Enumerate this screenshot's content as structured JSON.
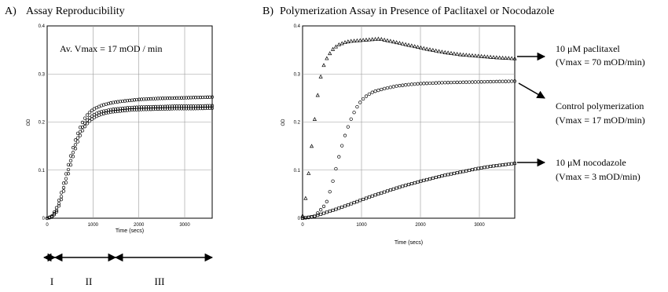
{
  "chart_data": [
    {
      "panel_label": "A)",
      "type": "scatter",
      "title": "Assay Reproducibility",
      "xlabel": "Time (secs)",
      "ylabel": "OD",
      "xlim": [
        0,
        3600
      ],
      "ylim": [
        0,
        0.4
      ],
      "x_ticks": [
        0,
        1000,
        2000,
        3000
      ],
      "x_tick_labels": [
        "0",
        "1000",
        "2000",
        "3000"
      ],
      "y_ticks": [
        0,
        0.1,
        0.2,
        0.3,
        0.4
      ],
      "y_tick_labels": [
        "0",
        "0.1",
        "0.2",
        "0.3",
        "0.4"
      ],
      "grid": true,
      "annotation": "Av. Vmax = 17 mOD / min",
      "series": [
        {
          "marker": "circle",
          "x": [
            0,
            100,
            200,
            300,
            400,
            500,
            600,
            700,
            800,
            900,
            1000,
            1100,
            1200,
            1400,
            1600,
            1800,
            2000,
            2400,
            2800,
            3200,
            3600
          ],
          "y": [
            0.0,
            0.004,
            0.02,
            0.05,
            0.088,
            0.125,
            0.158,
            0.185,
            0.205,
            0.218,
            0.226,
            0.231,
            0.235,
            0.24,
            0.243,
            0.245,
            0.247,
            0.249,
            0.25,
            0.251,
            0.252
          ]
        },
        {
          "marker": "circle",
          "x": [
            0,
            100,
            200,
            300,
            400,
            500,
            600,
            700,
            800,
            900,
            1000,
            1100,
            1200,
            1400,
            1600,
            1800,
            2000,
            2400,
            2800,
            3200,
            3600
          ],
          "y": [
            0.0,
            0.003,
            0.015,
            0.042,
            0.078,
            0.115,
            0.148,
            0.176,
            0.195,
            0.207,
            0.214,
            0.219,
            0.222,
            0.226,
            0.228,
            0.23,
            0.231,
            0.232,
            0.233,
            0.233,
            0.234
          ]
        },
        {
          "marker": "circle",
          "x": [
            0,
            100,
            200,
            300,
            400,
            500,
            600,
            700,
            800,
            900,
            1000,
            1100,
            1200,
            1400,
            1600,
            1800,
            2000,
            2400,
            2800,
            3200,
            3600
          ],
          "y": [
            0.0,
            0.002,
            0.012,
            0.036,
            0.07,
            0.106,
            0.14,
            0.168,
            0.188,
            0.2,
            0.208,
            0.213,
            0.217,
            0.221,
            0.223,
            0.225,
            0.226,
            0.227,
            0.228,
            0.228,
            0.229
          ]
        }
      ],
      "phases": [
        {
          "label": "I",
          "from": 0,
          "to": 80
        },
        {
          "label": "II",
          "from": 80,
          "to": 1500
        },
        {
          "label": "III",
          "from": 1500,
          "to": 3600
        }
      ]
    },
    {
      "panel_label": "B)",
      "type": "scatter",
      "title": "Polymerization Assay in Presence of Paclitaxel or Nocodazole",
      "xlabel": "Time (secs)",
      "ylabel": "OD",
      "xlim": [
        0,
        3600
      ],
      "ylim": [
        0,
        0.4
      ],
      "x_ticks": [
        0,
        1000,
        2000,
        3000
      ],
      "x_tick_labels": [
        "0",
        "1000",
        "2000",
        "3000"
      ],
      "y_ticks": [
        0,
        0.1,
        0.2,
        0.3,
        0.4
      ],
      "y_tick_labels": [
        "0",
        "0.1",
        "0.2",
        "0.3",
        "0.4"
      ],
      "grid": true,
      "series": [
        {
          "marker": "triangle",
          "label_line1": "10 μM paclitaxel",
          "label_line2": "(Vmax = 70 mOD/min)",
          "x": [
            0,
            50,
            100,
            150,
            200,
            250,
            300,
            350,
            400,
            500,
            600,
            700,
            800,
            1000,
            1200,
            1300,
            1500,
            1800,
            2100,
            2400,
            2700,
            3000,
            3300,
            3600
          ],
          "y": [
            0.005,
            0.04,
            0.09,
            0.145,
            0.2,
            0.25,
            0.29,
            0.315,
            0.33,
            0.35,
            0.36,
            0.365,
            0.368,
            0.37,
            0.372,
            0.373,
            0.368,
            0.36,
            0.352,
            0.345,
            0.34,
            0.337,
            0.334,
            0.332
          ]
        },
        {
          "marker": "circle",
          "label_line1": "Control polymerization",
          "label_line2": "(Vmax = 17 mOD/min)",
          "x": [
            0,
            200,
            400,
            500,
            600,
            700,
            800,
            900,
            1000,
            1100,
            1200,
            1400,
            1600,
            1800,
            2000,
            2400,
            2800,
            3200,
            3600
          ],
          "y": [
            0.0,
            0.003,
            0.03,
            0.07,
            0.12,
            0.165,
            0.2,
            0.227,
            0.245,
            0.256,
            0.263,
            0.27,
            0.275,
            0.278,
            0.28,
            0.282,
            0.283,
            0.284,
            0.285
          ]
        },
        {
          "marker": "square",
          "label_line1": "10 μM nocodazole",
          "label_line2": "(Vmax = 3 mOD/min)",
          "x": [
            0,
            200,
            400,
            600,
            800,
            1000,
            1200,
            1400,
            1600,
            1800,
            2000,
            2200,
            2400,
            2600,
            2800,
            3000,
            3200,
            3400,
            3600
          ],
          "y": [
            0.0,
            0.004,
            0.012,
            0.02,
            0.029,
            0.038,
            0.047,
            0.055,
            0.063,
            0.07,
            0.077,
            0.083,
            0.089,
            0.094,
            0.099,
            0.104,
            0.108,
            0.111,
            0.114
          ]
        }
      ]
    }
  ]
}
